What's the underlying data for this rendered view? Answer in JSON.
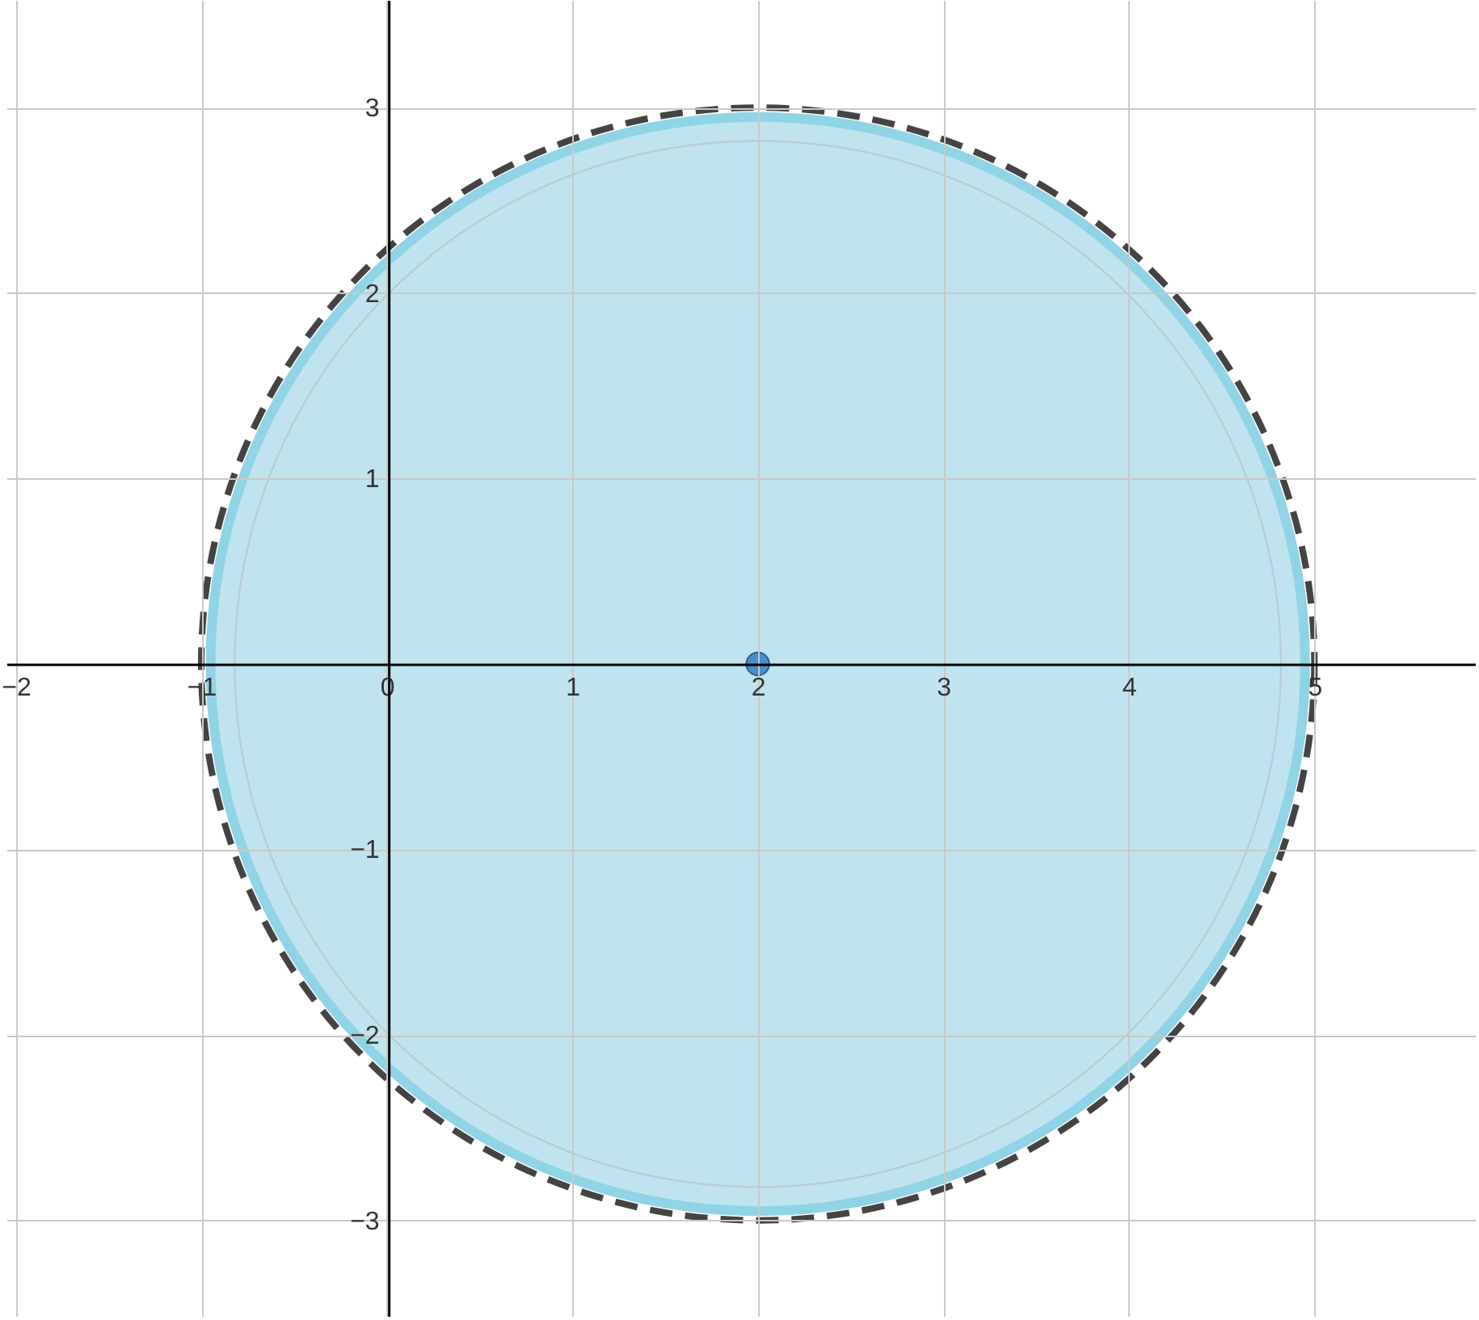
{
  "chart_data": {
    "type": "scatter",
    "xlim": [
      -2.05,
      5.87
    ],
    "ylim": [
      -3.52,
      3.58
    ],
    "xticks": [
      -2,
      -1,
      0,
      1,
      2,
      3,
      4,
      5
    ],
    "yticks": [
      -3,
      -2,
      -1,
      1,
      2,
      3
    ],
    "grid": true,
    "series": [
      {
        "type": "area",
        "color": "#b4dfec",
        "x": [
          -0.95,
          -0.91,
          -0.77,
          -0.55,
          -0.26,
          0.1,
          0.52,
          0.99,
          1.49,
          2,
          2.51,
          3.01,
          3.48,
          3.9,
          4.26,
          4.55,
          4.77,
          4.91,
          4.95
        ],
        "values": [
          0,
          0.51,
          1.01,
          1.48,
          1.9,
          2.26,
          2.55,
          2.77,
          2.91,
          2.95,
          2.91,
          2.77,
          2.55,
          2.26,
          1.9,
          1.48,
          1.01,
          0.51,
          0
        ]
      },
      {
        "type": "area",
        "color": "#b4dfec",
        "x": [
          -0.95,
          -0.91,
          -0.77,
          -0.55,
          -0.26,
          0.1,
          0.52,
          0.99,
          1.49,
          2,
          2.51,
          3.01,
          3.48,
          3.9,
          4.26,
          4.55,
          4.77,
          4.91,
          4.95
        ],
        "values": [
          0,
          -0.51,
          -1.01,
          -1.48,
          -1.9,
          -2.26,
          -2.55,
          -2.77,
          -2.91,
          -2.95,
          -2.91,
          -2.77,
          -2.55,
          -2.26,
          -1.9,
          -1.48,
          -1.01,
          -0.51,
          0
        ]
      },
      {
        "color": "#4a8fcc",
        "marker": "circle",
        "x": [
          2
        ],
        "values": [
          0
        ]
      }
    ]
  }
}
